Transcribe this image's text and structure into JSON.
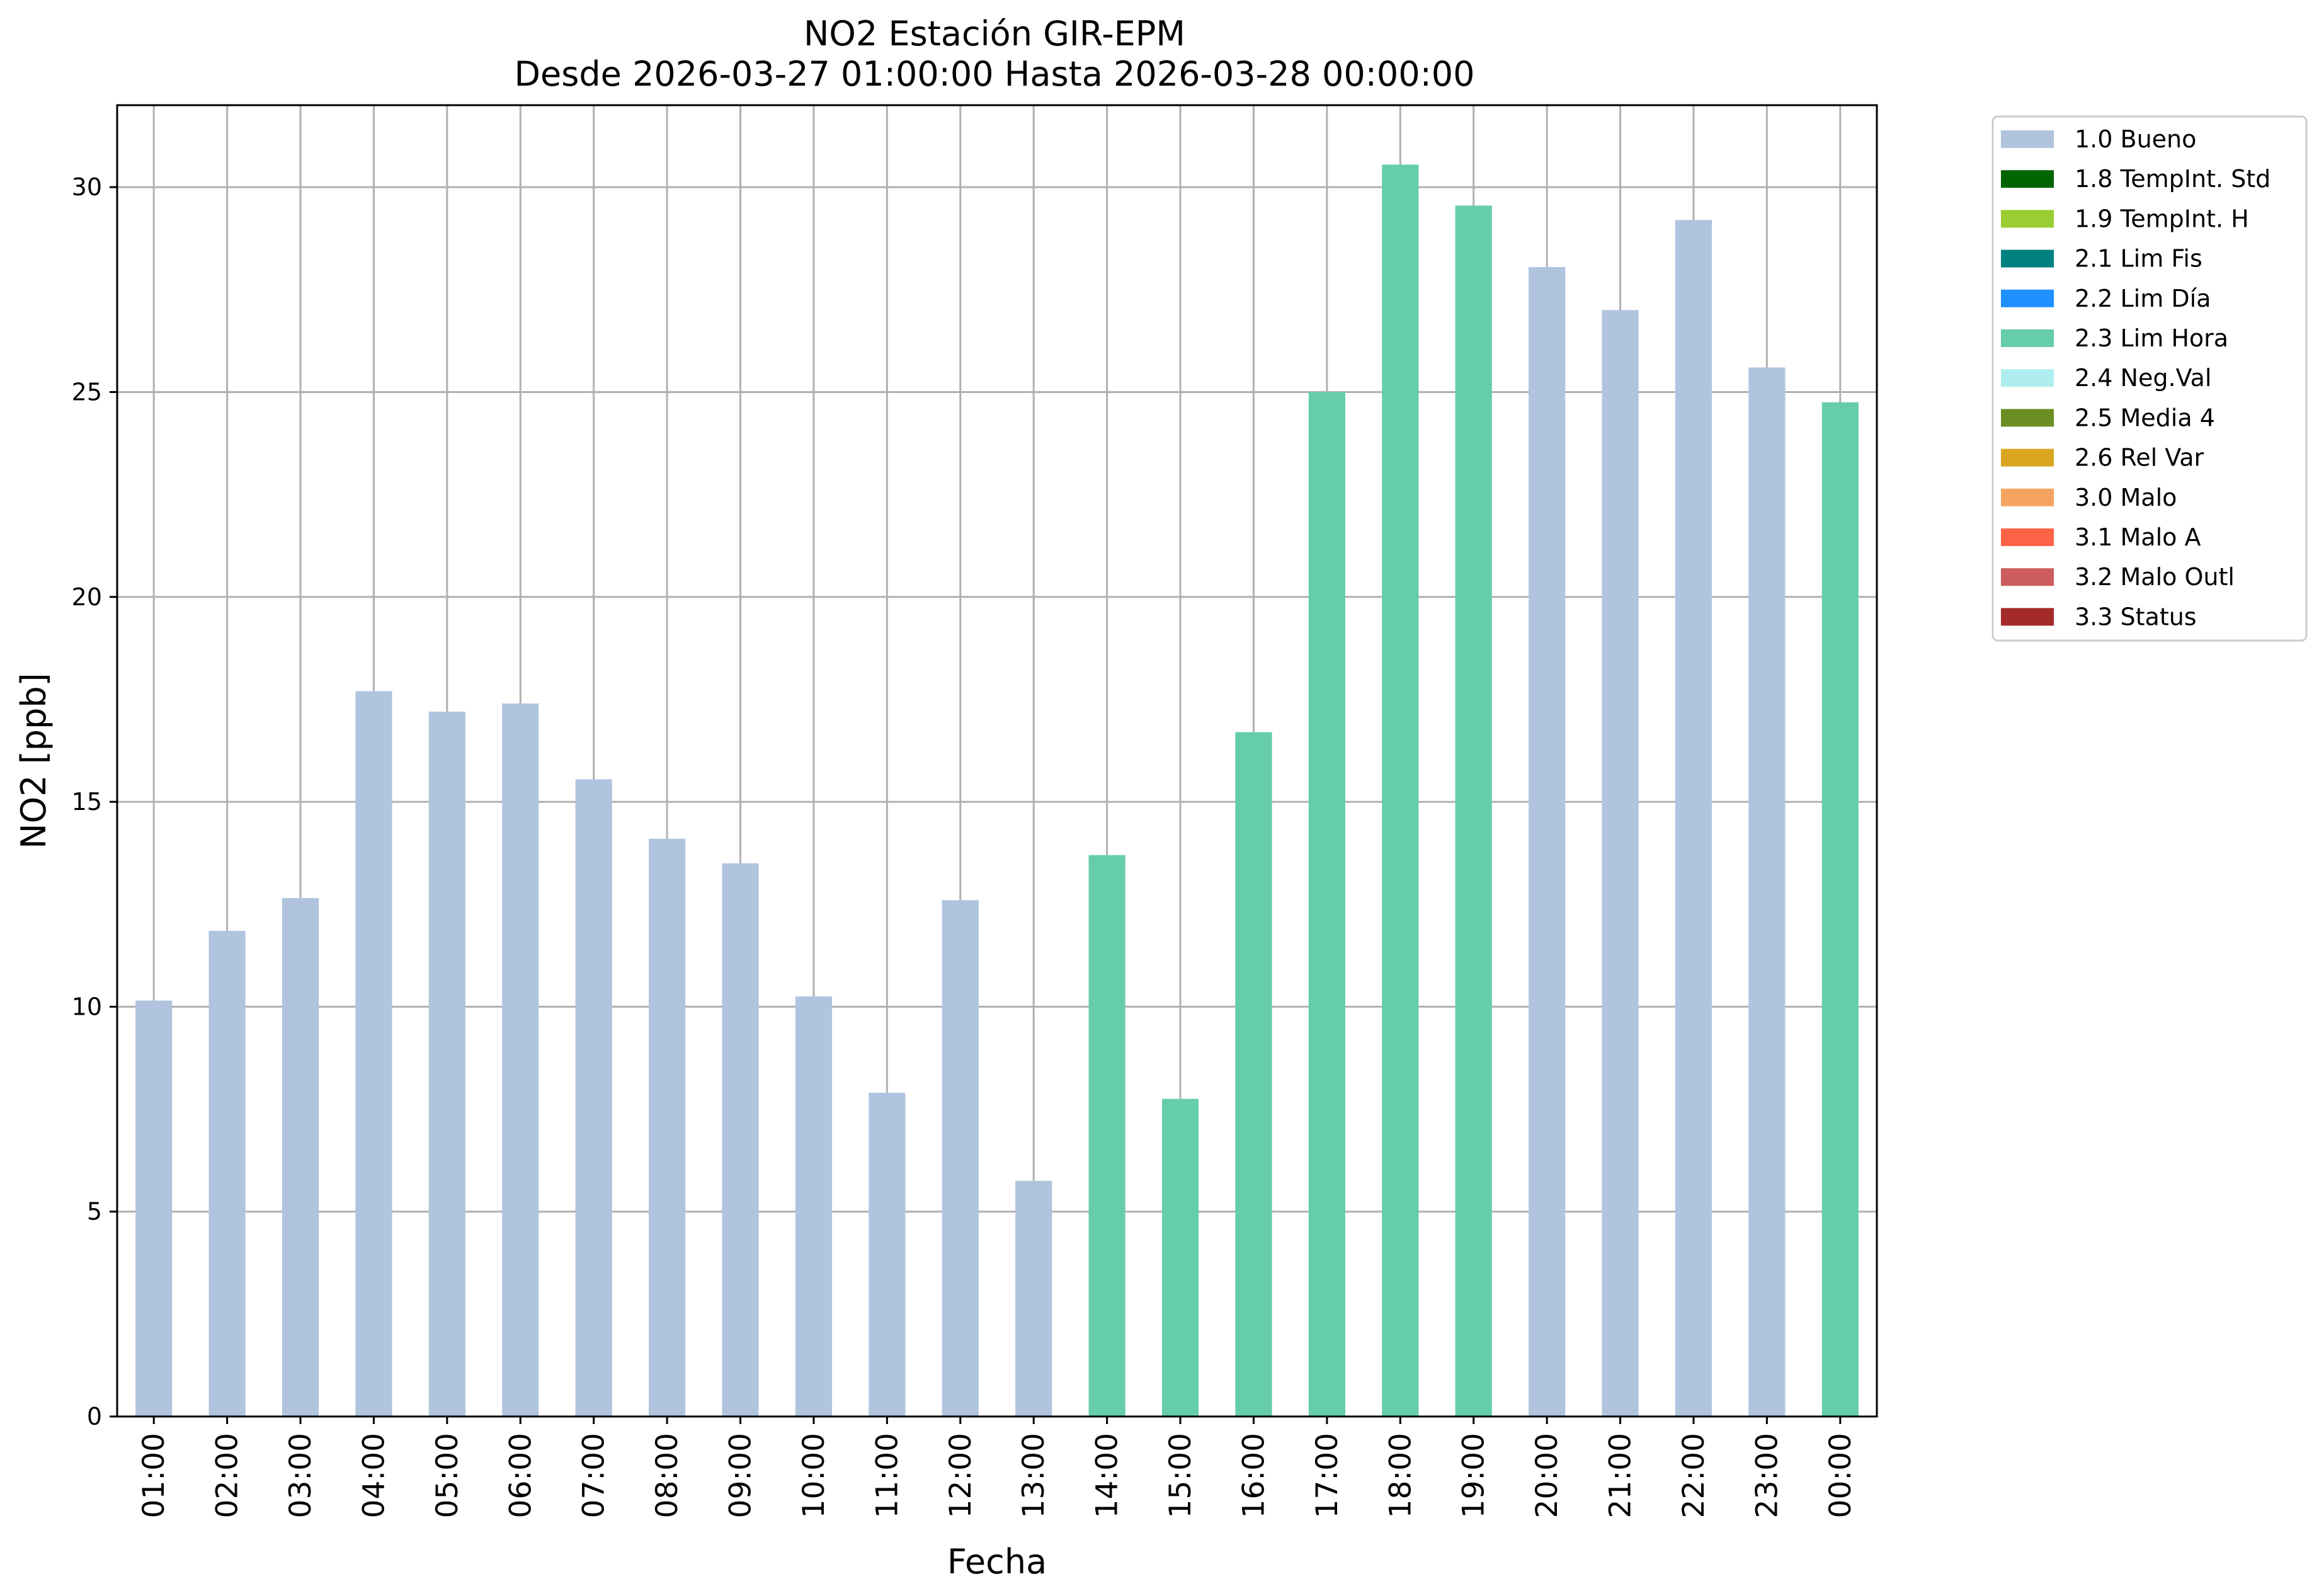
{
  "chart_data": {
    "type": "bar",
    "title": "NO2 Estación GIR-EPM",
    "subtitle": "Desde 2026-03-27 01:00:00 Hasta 2026-03-28 00:00:00",
    "xlabel": "Fecha",
    "ylabel": "NO2 [ppb]",
    "ylim": [
      0,
      32
    ],
    "yticks": [
      0,
      5,
      10,
      15,
      20,
      25,
      30
    ],
    "grid": true,
    "legend_position": "outside-right",
    "categories": [
      "01:00",
      "02:00",
      "03:00",
      "04:00",
      "05:00",
      "06:00",
      "07:00",
      "08:00",
      "09:00",
      "10:00",
      "11:00",
      "12:00",
      "13:00",
      "14:00",
      "15:00",
      "16:00",
      "17:00",
      "18:00",
      "19:00",
      "20:00",
      "21:00",
      "22:00",
      "23:00",
      "00:00"
    ],
    "values": [
      10.15,
      11.85,
      12.65,
      17.7,
      17.2,
      17.4,
      15.55,
      14.1,
      13.5,
      10.25,
      7.9,
      12.6,
      5.75,
      13.7,
      7.75,
      16.7,
      25.0,
      30.55,
      29.55,
      28.05,
      27.0,
      29.2,
      25.6,
      24.75
    ],
    "flags": [
      "1.0 Bueno",
      "1.0 Bueno",
      "1.0 Bueno",
      "1.0 Bueno",
      "1.0 Bueno",
      "1.0 Bueno",
      "1.0 Bueno",
      "1.0 Bueno",
      "1.0 Bueno",
      "1.0 Bueno",
      "1.0 Bueno",
      "1.0 Bueno",
      "1.0 Bueno",
      "2.3 Lim Hora",
      "2.3 Lim Hora",
      "2.3 Lim Hora",
      "2.3 Lim Hora",
      "2.3 Lim Hora",
      "2.3 Lim Hora",
      "1.0 Bueno",
      "1.0 Bueno",
      "1.0 Bueno",
      "1.0 Bueno",
      "2.3 Lim Hora"
    ],
    "legend": [
      {
        "label": "1.0 Bueno",
        "color": "#b0c4de"
      },
      {
        "label": "1.8 TempInt. Std",
        "color": "#006400"
      },
      {
        "label": "1.9 TempInt. H",
        "color": "#9acd32"
      },
      {
        "label": "2.1 Lim Fis",
        "color": "#008080"
      },
      {
        "label": "2.2 Lim Día",
        "color": "#1e90ff"
      },
      {
        "label": "2.3 Lim Hora",
        "color": "#66cdaa"
      },
      {
        "label": "2.4 Neg.Val",
        "color": "#afeeee"
      },
      {
        "label": "2.5 Media 4",
        "color": "#6b8e23"
      },
      {
        "label": "2.6 Rel Var",
        "color": "#daa520"
      },
      {
        "label": "3.0 Malo",
        "color": "#f4a460"
      },
      {
        "label": "3.1 Malo A",
        "color": "#ff6347"
      },
      {
        "label": "3.2 Malo Outl",
        "color": "#cd5c5c"
      },
      {
        "label": "3.3 Status",
        "color": "#a52a2a"
      }
    ]
  }
}
